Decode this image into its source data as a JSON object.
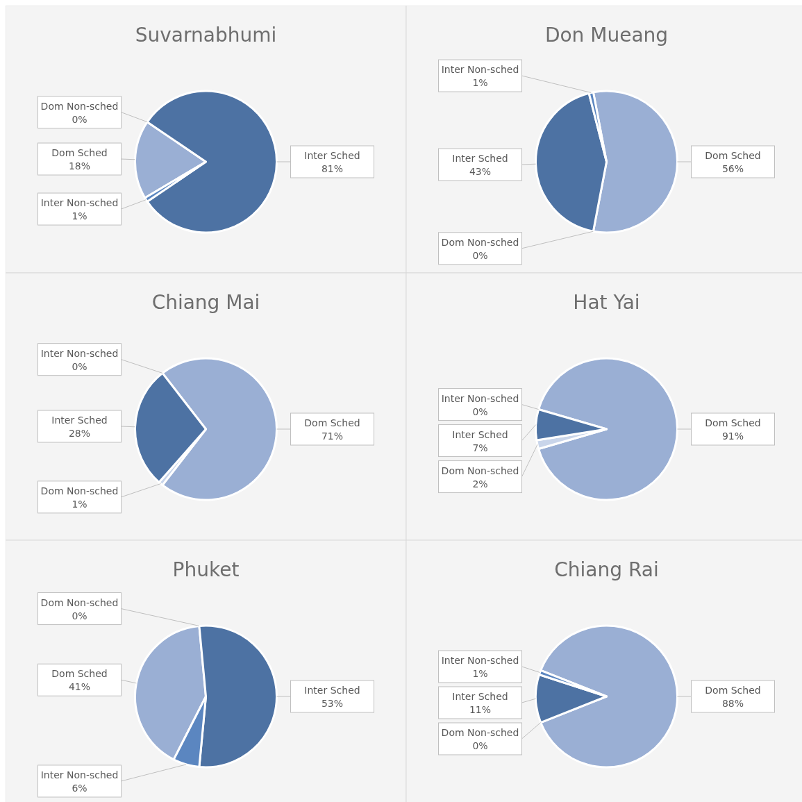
{
  "chart_data": [
    {
      "type": "pie",
      "title": "Suvarnabhumi",
      "categories": [
        "Dom Sched",
        "Dom Non-sched",
        "Inter Sched",
        "Inter Non-sched"
      ],
      "values": [
        18,
        0,
        81,
        1
      ],
      "value_labels": [
        "18%",
        "0%",
        "81%",
        "1%"
      ],
      "colors": [
        "#9aafd4",
        "#c9d5ea",
        "#4d72a3",
        "#5b86c0"
      ]
    },
    {
      "type": "pie",
      "title": "Don Mueang",
      "categories": [
        "Dom Sched",
        "Dom Non-sched",
        "Inter Sched",
        "Inter Non-sched"
      ],
      "values": [
        56,
        0,
        43,
        1
      ],
      "value_labels": [
        "56%",
        "0%",
        "43%",
        "1%"
      ],
      "colors": [
        "#9aafd4",
        "#c9d5ea",
        "#4d72a3",
        "#5b86c0"
      ]
    },
    {
      "type": "pie",
      "title": "Chiang Mai",
      "categories": [
        "Dom Sched",
        "Dom Non-sched",
        "Inter Sched",
        "Inter Non-sched"
      ],
      "values": [
        71,
        1,
        28,
        0
      ],
      "value_labels": [
        "71%",
        "1%",
        "28%",
        "0%"
      ],
      "colors": [
        "#9aafd4",
        "#c9d5ea",
        "#4d72a3",
        "#5b86c0"
      ]
    },
    {
      "type": "pie",
      "title": "Hat Yai",
      "categories": [
        "Dom Sched",
        "Dom Non-sched",
        "Inter Sched",
        "Inter Non-sched"
      ],
      "values": [
        91,
        2,
        7,
        0
      ],
      "value_labels": [
        "91%",
        "2%",
        "7%",
        "0%"
      ],
      "colors": [
        "#9aafd4",
        "#c9d5ea",
        "#4d72a3",
        "#5b86c0"
      ]
    },
    {
      "type": "pie",
      "title": "Phuket",
      "categories": [
        "Dom Sched",
        "Dom Non-sched",
        "Inter Sched",
        "Inter Non-sched"
      ],
      "values": [
        41,
        0,
        53,
        6
      ],
      "value_labels": [
        "41%",
        "0%",
        "53%",
        "6%"
      ],
      "colors": [
        "#9aafd4",
        "#c9d5ea",
        "#4d72a3",
        "#5b86c0"
      ]
    },
    {
      "type": "pie",
      "title": "Chiang Rai",
      "categories": [
        "Dom Sched",
        "Dom Non-sched",
        "Inter Sched",
        "Inter Non-sched"
      ],
      "values": [
        88,
        0,
        11,
        1
      ],
      "value_labels": [
        "88%",
        "0%",
        "11%",
        "1%"
      ],
      "colors": [
        "#9aafd4",
        "#c9d5ea",
        "#4d72a3",
        "#5b86c0"
      ]
    }
  ]
}
